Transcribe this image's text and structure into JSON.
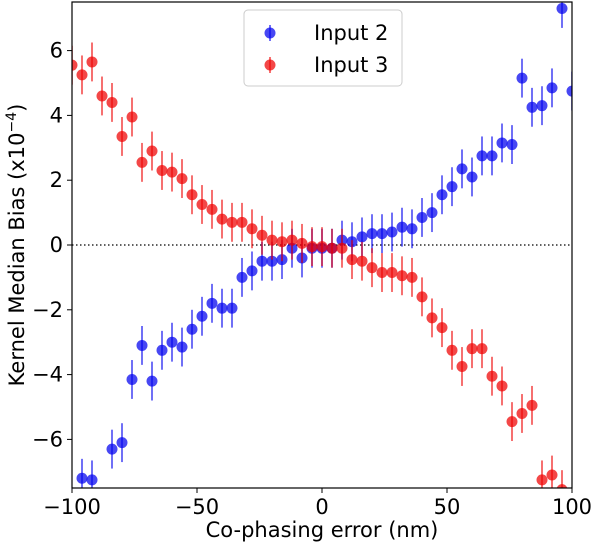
{
  "chart_data": {
    "type": "scatter",
    "xlabel": "Co-phasing error (nm)",
    "ylabel_main": "Kernel Median Bias (x10",
    "ylabel_exp": "−4",
    "ylabel_close": ")",
    "xlim": [
      -100,
      100
    ],
    "ylim": [
      -7.5,
      7.5
    ],
    "x_ticks": [
      -100,
      -50,
      0,
      50,
      100
    ],
    "x_tick_labels": [
      "−100",
      "−50",
      "0",
      "50",
      "100"
    ],
    "y_ticks": [
      -6,
      -4,
      -2,
      0,
      2,
      4,
      6
    ],
    "y_tick_labels": [
      "−6",
      "−4",
      "−2",
      "0",
      "2",
      "4",
      "6"
    ],
    "reference_line_y": 0,
    "legend_position": "top-center",
    "series": [
      {
        "name": "Input 2",
        "color": "#0000ee",
        "x": [
          -96,
          -92,
          -84,
          -80,
          -76,
          -72,
          -68,
          -64,
          -60,
          -56,
          -52,
          -48,
          -44,
          -40,
          -36,
          -32,
          -28,
          -24,
          -20,
          -16,
          -12,
          -8,
          -4,
          0,
          4,
          8,
          12,
          16,
          20,
          24,
          28,
          32,
          36,
          40,
          44,
          48,
          52,
          56,
          60,
          64,
          68,
          72,
          76,
          80,
          84,
          88,
          92,
          96,
          100
        ],
        "y": [
          -7.2,
          -7.25,
          -6.3,
          -6.1,
          -4.15,
          -3.1,
          -4.2,
          -3.25,
          -3.0,
          -3.15,
          -2.6,
          -2.2,
          -1.8,
          -1.95,
          -1.95,
          -1.0,
          -0.8,
          -0.5,
          -0.5,
          -0.45,
          -0.1,
          -0.4,
          -0.1,
          -0.1,
          -0.1,
          0.15,
          0.1,
          0.25,
          0.35,
          0.35,
          0.4,
          0.55,
          0.5,
          0.85,
          1.0,
          1.55,
          1.8,
          2.35,
          2.1,
          2.75,
          2.75,
          3.15,
          3.1,
          5.15,
          4.25,
          4.3,
          4.85,
          7.3,
          4.75
        ],
        "err": [
          0.6,
          0.6,
          0.6,
          0.6,
          0.6,
          0.6,
          0.6,
          0.6,
          0.6,
          0.6,
          0.6,
          0.6,
          0.6,
          0.6,
          0.6,
          0.6,
          0.6,
          0.6,
          0.6,
          0.6,
          0.6,
          0.6,
          0.6,
          0.6,
          0.6,
          0.6,
          0.6,
          0.6,
          0.6,
          0.6,
          0.6,
          0.6,
          0.6,
          0.6,
          0.6,
          0.6,
          0.6,
          0.6,
          0.6,
          0.6,
          0.6,
          0.6,
          0.6,
          0.6,
          0.6,
          0.6,
          0.6,
          0.6,
          0.6
        ]
      },
      {
        "name": "Input 3",
        "color": "#ee0000",
        "x": [
          -100,
          -96,
          -92,
          -88,
          -84,
          -80,
          -76,
          -72,
          -68,
          -64,
          -60,
          -56,
          -52,
          -48,
          -44,
          -40,
          -36,
          -32,
          -28,
          -24,
          -20,
          -16,
          -12,
          -8,
          -4,
          0,
          4,
          8,
          12,
          16,
          20,
          24,
          28,
          32,
          36,
          40,
          44,
          48,
          52,
          56,
          60,
          64,
          68,
          72,
          76,
          80,
          84,
          88,
          92,
          96
        ],
        "y": [
          5.55,
          5.25,
          5.65,
          4.6,
          4.4,
          3.35,
          3.95,
          2.55,
          2.9,
          2.3,
          2.25,
          2.05,
          1.55,
          1.25,
          1.1,
          0.8,
          0.7,
          0.7,
          0.5,
          0.3,
          0.15,
          0.1,
          0.15,
          0.05,
          -0.05,
          -0.05,
          -0.1,
          -0.1,
          -0.45,
          -0.5,
          -0.7,
          -0.85,
          -0.85,
          -0.95,
          -1.0,
          -1.6,
          -2.25,
          -2.55,
          -3.25,
          -3.75,
          -3.2,
          -3.2,
          -4.05,
          -4.35,
          -5.45,
          -5.2,
          -4.95,
          -7.25,
          -7.1,
          -7.55
        ],
        "err": [
          0.6,
          0.6,
          0.6,
          0.6,
          0.6,
          0.6,
          0.6,
          0.6,
          0.6,
          0.6,
          0.6,
          0.6,
          0.6,
          0.6,
          0.6,
          0.6,
          0.6,
          0.6,
          0.6,
          0.6,
          0.6,
          0.6,
          0.6,
          0.6,
          0.6,
          0.6,
          0.6,
          0.6,
          0.6,
          0.6,
          0.6,
          0.6,
          0.6,
          0.6,
          0.6,
          0.6,
          0.6,
          0.6,
          0.6,
          0.6,
          0.6,
          0.6,
          0.6,
          0.6,
          0.6,
          0.6,
          0.6,
          0.6,
          0.6,
          0.6
        ]
      }
    ]
  }
}
